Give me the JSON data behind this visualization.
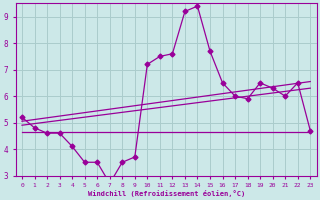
{
  "xlabel": "Windchill (Refroidissement éolien,°C)",
  "xlim": [
    -0.5,
    23.5
  ],
  "ylim": [
    3,
    9.5
  ],
  "xticks": [
    0,
    1,
    2,
    3,
    4,
    5,
    6,
    7,
    8,
    9,
    10,
    11,
    12,
    13,
    14,
    15,
    16,
    17,
    18,
    19,
    20,
    21,
    22,
    23
  ],
  "yticks": [
    3,
    4,
    5,
    6,
    7,
    8,
    9
  ],
  "bg_color": "#cce8e8",
  "line_color": "#990099",
  "grid_color": "#aacccc",
  "main_data_x": [
    0,
    1,
    2,
    3,
    4,
    5,
    6,
    7,
    8,
    9,
    10,
    11,
    12,
    13,
    14,
    15,
    16,
    17,
    18,
    19,
    20,
    21,
    22,
    23
  ],
  "main_data_y": [
    5.2,
    4.8,
    4.6,
    4.6,
    4.1,
    3.5,
    3.5,
    2.7,
    3.5,
    3.7,
    7.2,
    7.5,
    7.6,
    9.2,
    9.4,
    7.7,
    6.5,
    6.0,
    5.9,
    6.5,
    6.3,
    6.0,
    6.5,
    4.7
  ],
  "flat_line_x": [
    0,
    23
  ],
  "flat_line_y": [
    4.65,
    4.65
  ],
  "trend2_x": [
    0,
    23
  ],
  "trend2_y": [
    4.9,
    6.3
  ],
  "trend3_x": [
    0,
    23
  ],
  "trend3_y": [
    5.05,
    6.55
  ]
}
